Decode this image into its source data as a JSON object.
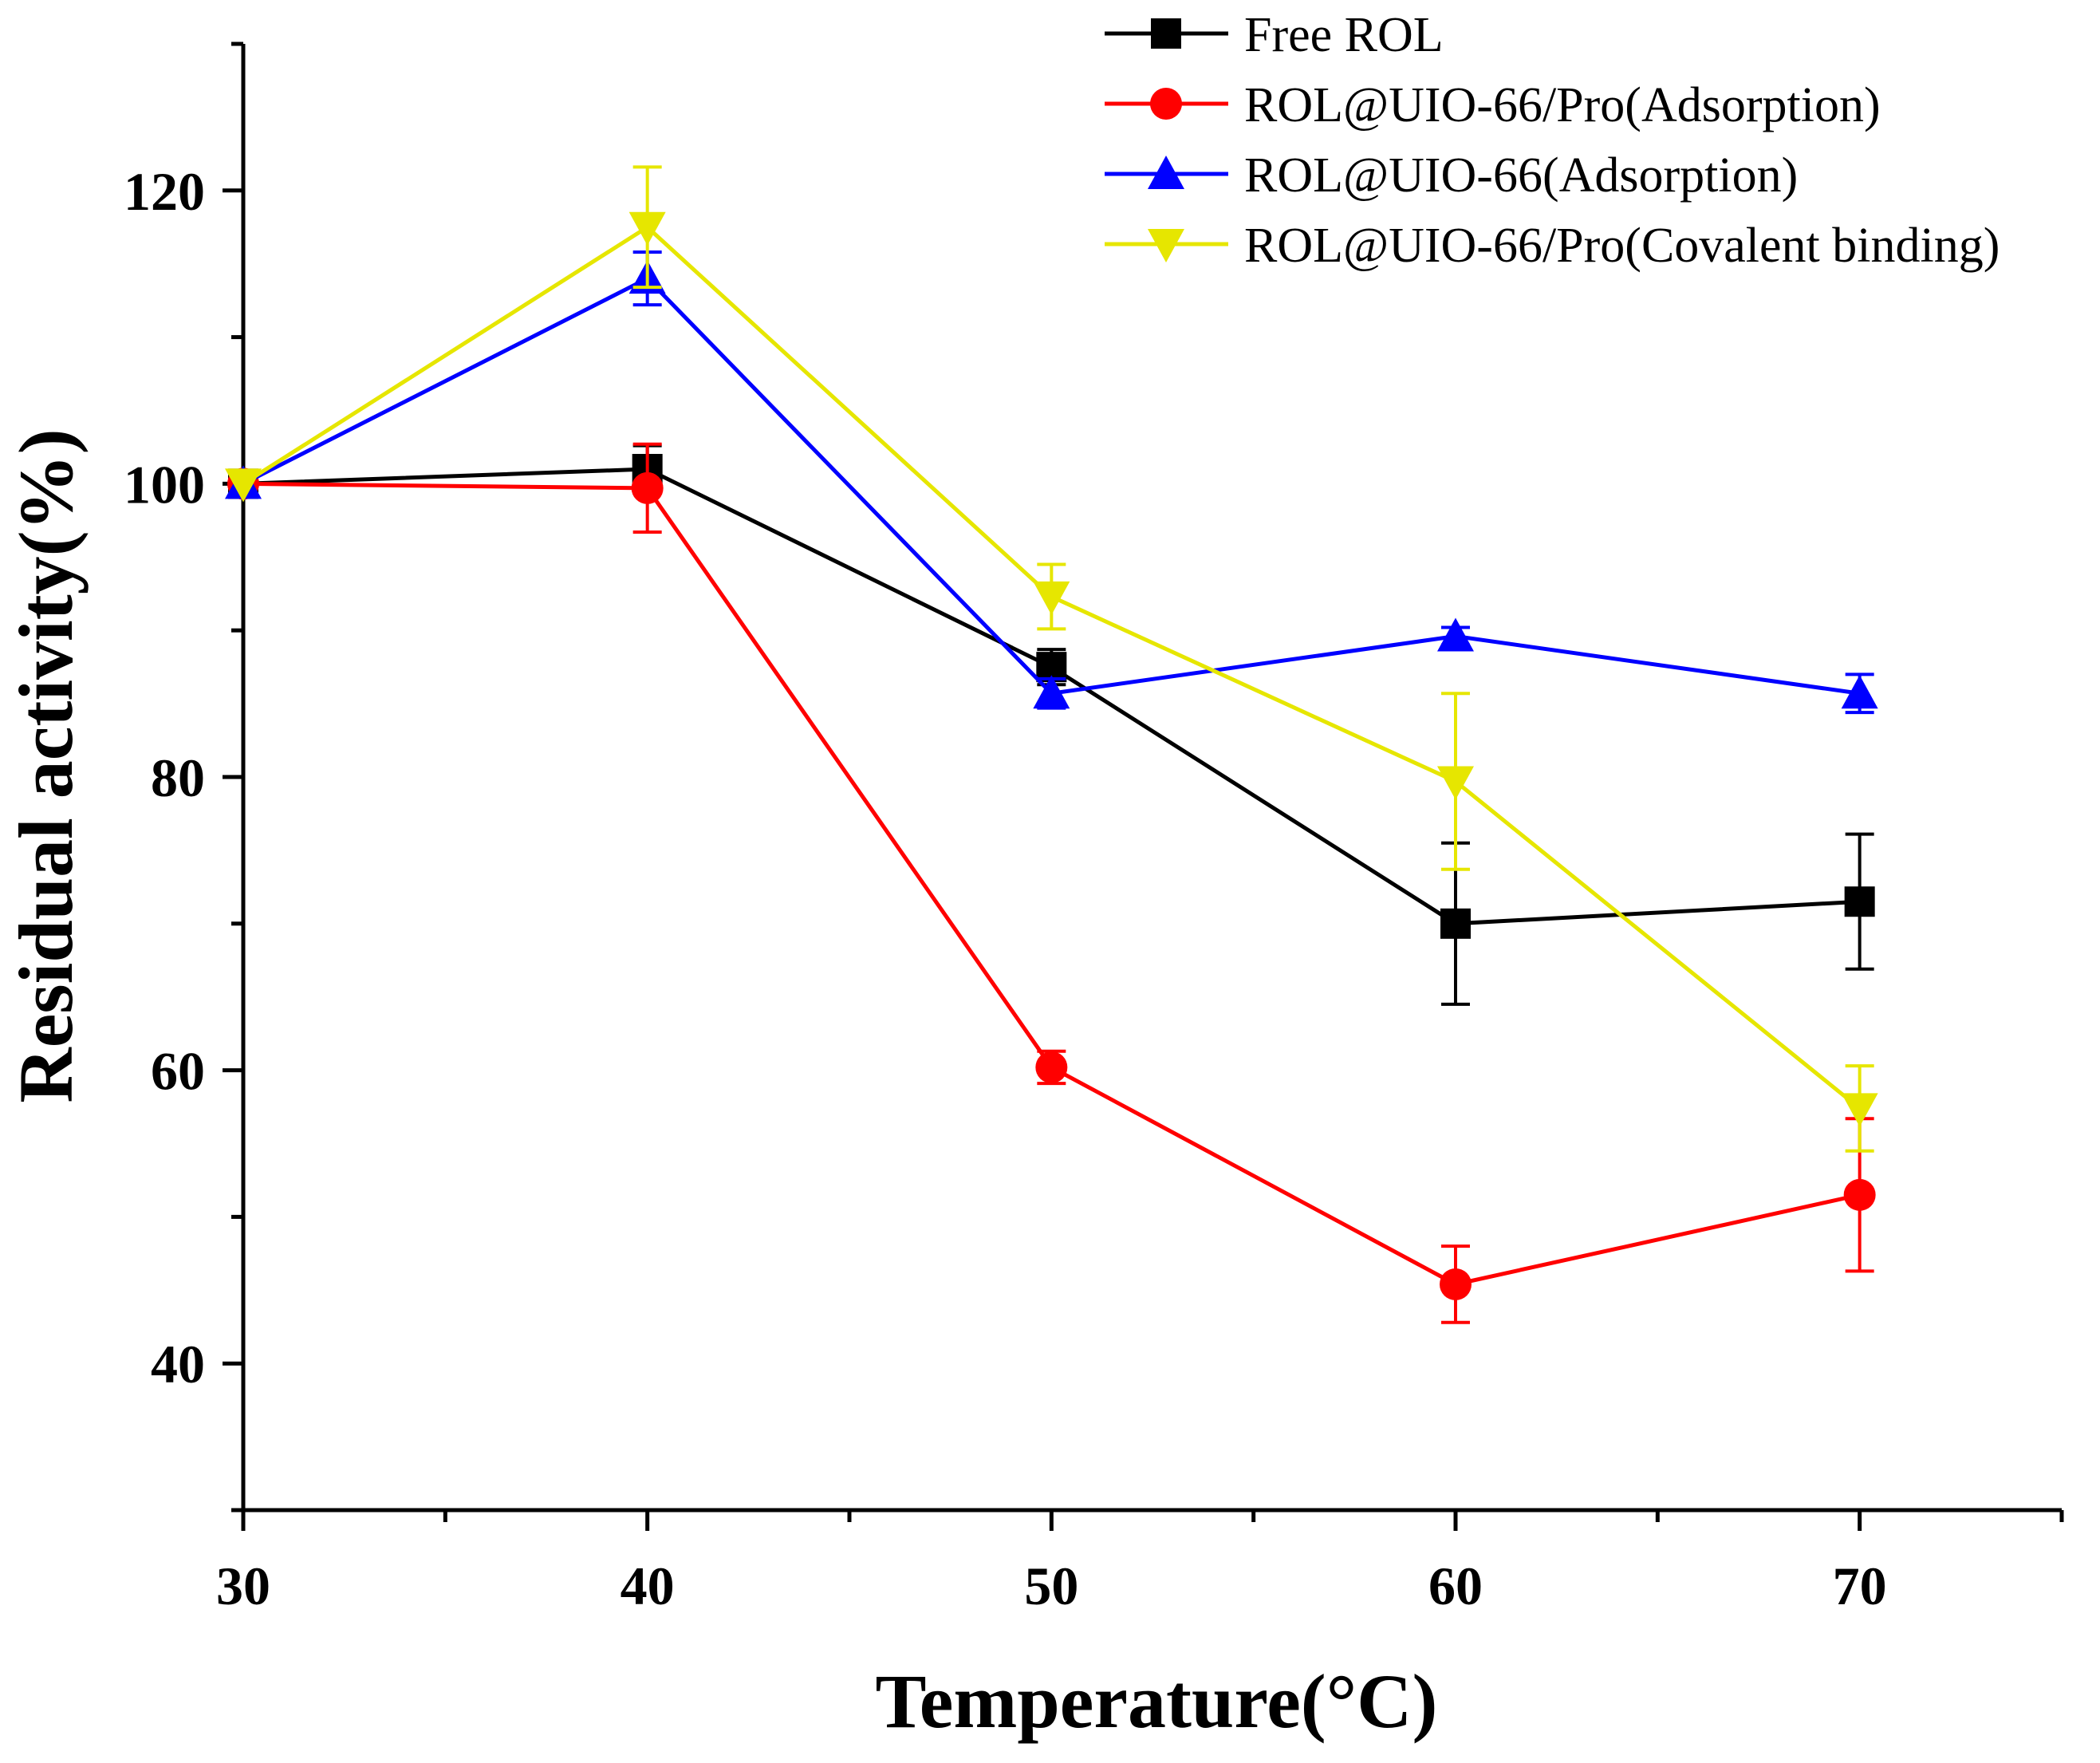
{
  "chart_data": {
    "type": "line",
    "xlabel": "Temperature(°C)",
    "ylabel": "Residual activity(%)",
    "xlim": [
      30,
      75
    ],
    "ylim": [
      30,
      130
    ],
    "xticks": [
      30,
      40,
      50,
      60,
      70
    ],
    "xminor": [
      35,
      45,
      55,
      65,
      75
    ],
    "yticks": [
      40,
      60,
      80,
      100,
      120
    ],
    "yminor": [
      30,
      50,
      70,
      90,
      110,
      130
    ],
    "legend_position": "top-right",
    "series": [
      {
        "name": "Free ROL",
        "color": "#000000",
        "marker": "square",
        "x": [
          30,
          40,
          50,
          60,
          70
        ],
        "y": [
          100,
          101,
          87.5,
          70,
          71.5
        ],
        "err": [
          0,
          1.6,
          1.2,
          5.5,
          4.6
        ]
      },
      {
        "name": "ROL@UIO-66/Pro(Adsorption)",
        "color": "#ff0000",
        "marker": "circle",
        "x": [
          30,
          40,
          50,
          60,
          70
        ],
        "y": [
          100,
          99.7,
          60.2,
          45.4,
          51.5
        ],
        "err": [
          0,
          3.0,
          1.1,
          2.6,
          5.2
        ]
      },
      {
        "name": "ROL@UIO-66(Adsorption)",
        "color": "#0000ff",
        "marker": "triangle-up",
        "x": [
          30,
          40,
          50,
          60,
          70
        ],
        "y": [
          100,
          114,
          85.7,
          89.6,
          85.7
        ],
        "err": [
          0,
          1.8,
          1.0,
          0.6,
          1.3
        ]
      },
      {
        "name": "ROL@UIO-66/Pro(Covalent binding)",
        "color": "#e6e600",
        "marker": "triangle-down",
        "x": [
          30,
          40,
          50,
          60,
          70
        ],
        "y": [
          100,
          117.5,
          92.3,
          79.7,
          57.4
        ],
        "err": [
          0,
          4.1,
          2.2,
          6.0,
          2.9
        ]
      }
    ]
  }
}
